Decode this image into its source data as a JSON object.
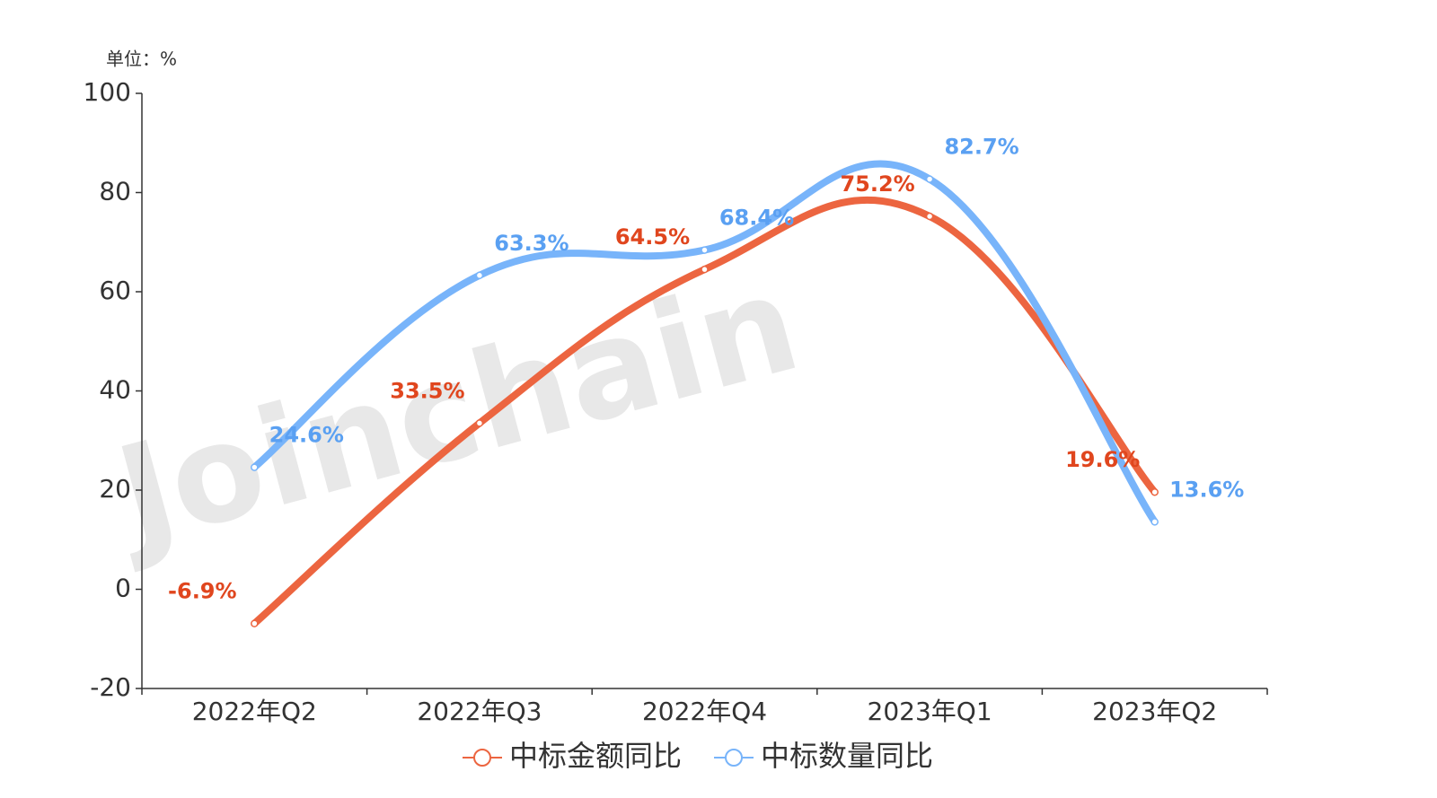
{
  "chart_data": {
    "type": "line",
    "unit_label": "单位：%",
    "watermark": "Joinchain",
    "categories": [
      "2022年Q2",
      "2022年Q3",
      "2022年Q4",
      "2023年Q1",
      "2023年Q2"
    ],
    "series": [
      {
        "name": "中标金额同比",
        "color": "#ec6540",
        "label_color": "#e0461e",
        "values": [
          -6.9,
          33.5,
          64.5,
          75.2,
          19.6
        ],
        "value_labels": [
          "-6.9%",
          "33.5%",
          "64.5%",
          "75.2%",
          "19.6%"
        ]
      },
      {
        "name": "中标数量同比",
        "color": "#78b4fa",
        "label_color": "#5aa0f2",
        "values": [
          24.6,
          63.3,
          68.4,
          82.7,
          13.6
        ],
        "value_labels": [
          "24.6%",
          "63.3%",
          "68.4%",
          "82.7%",
          "13.6%"
        ]
      }
    ],
    "ylim": [
      -20,
      100
    ],
    "yticks": [
      -20,
      0,
      20,
      40,
      60,
      80,
      100
    ],
    "smooth": true,
    "legend": "bottom"
  }
}
